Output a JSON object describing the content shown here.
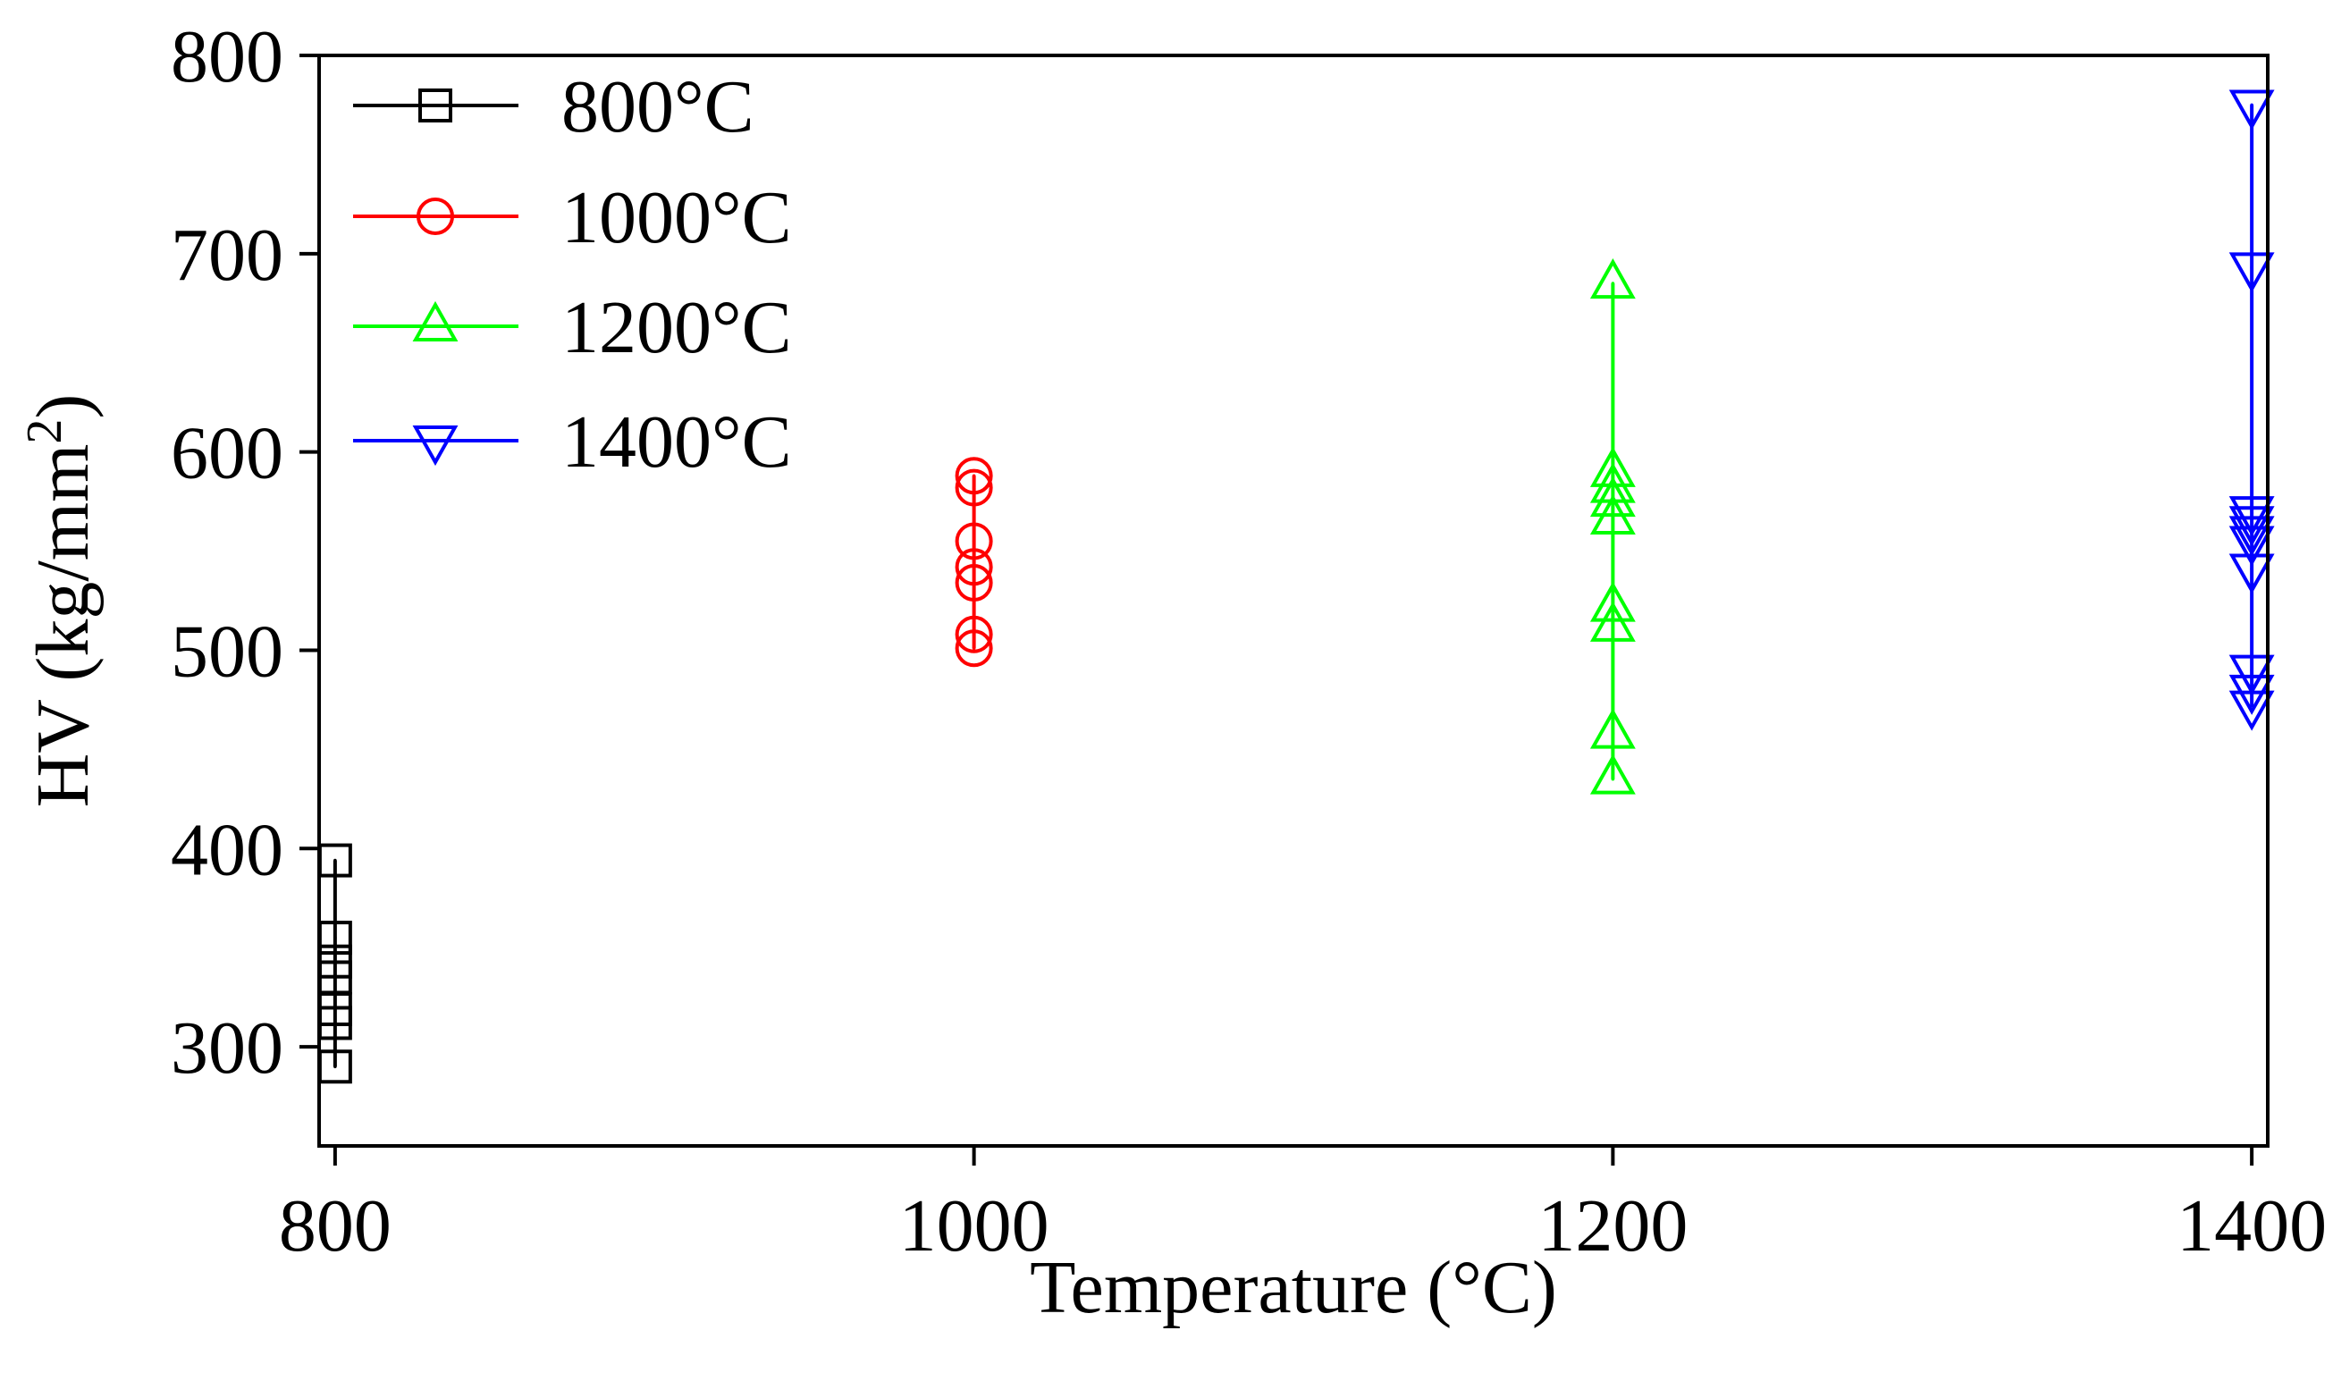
{
  "chart_data": {
    "type": "scatter",
    "title": "",
    "xlabel": "Temperature (°C)",
    "ylabel_main": "HV (kg/mm",
    "ylabel_sup": "2",
    "ylabel_close": ")",
    "xlim": [
      795,
      1405
    ],
    "ylim": [
      250,
      800
    ],
    "xticks": [
      800,
      1000,
      1200,
      1400
    ],
    "yticks": [
      300,
      400,
      500,
      600,
      700,
      800
    ],
    "legend_position": "top-left",
    "series": [
      {
        "name": "800°C",
        "color": "#000000",
        "marker": "square",
        "x": 800,
        "values": [
          394,
          355,
          343,
          335,
          319,
          312,
          290
        ]
      },
      {
        "name": "1000°C",
        "color": "#ff0000",
        "marker": "circle",
        "x": 1000,
        "values": [
          588,
          582,
          555,
          542,
          534,
          508,
          501
        ]
      },
      {
        "name": "1200°C",
        "color": "#00ff00",
        "marker": "triangle-up",
        "x": 1200,
        "values": [
          685,
          590,
          582,
          575,
          566,
          522,
          512,
          458,
          435
        ]
      },
      {
        "name": "1400°C",
        "color": "#0000ff",
        "marker": "triangle-down",
        "x": 1400,
        "values": [
          775,
          693,
          570,
          565,
          560,
          555,
          541,
          490,
          480,
          472
        ]
      }
    ]
  }
}
